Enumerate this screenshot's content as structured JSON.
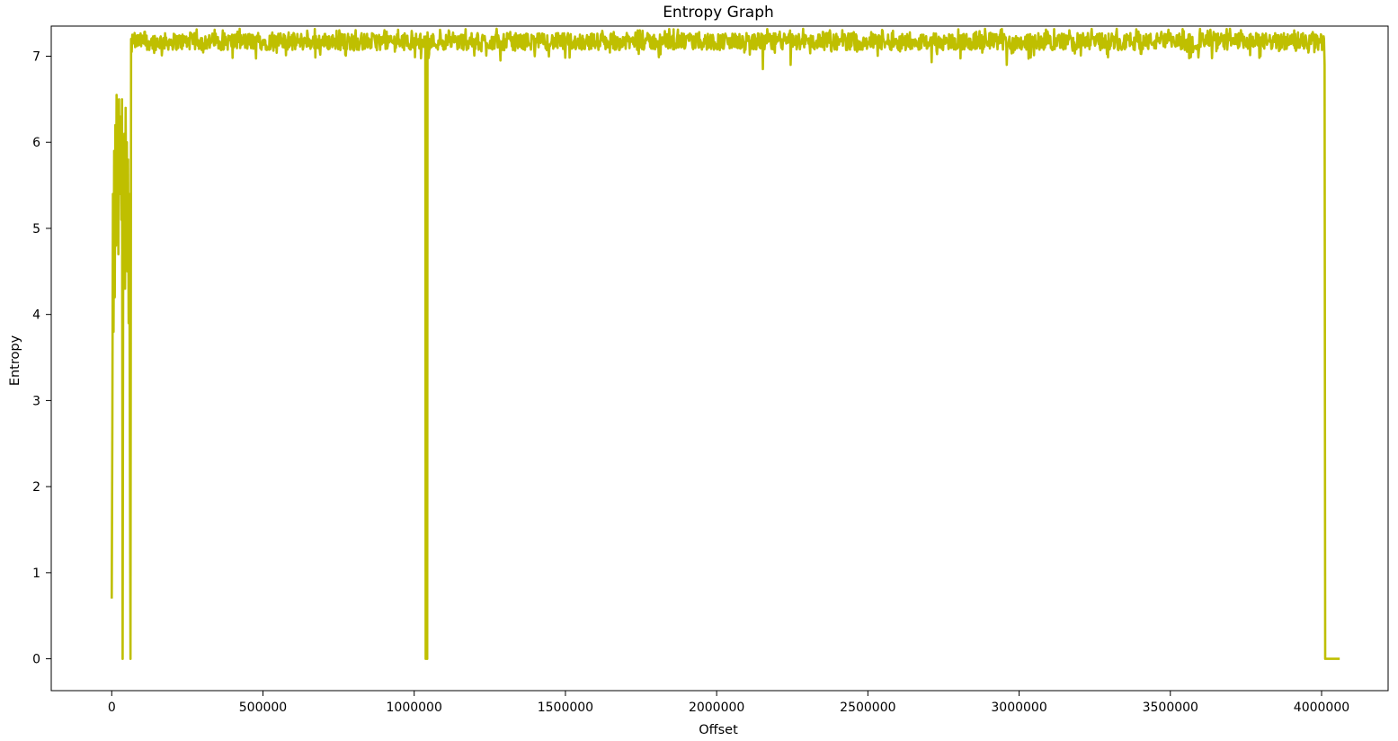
{
  "chart_data": {
    "type": "line",
    "title": "Entropy Graph",
    "xlabel": "Offset",
    "ylabel": "Entropy",
    "xlim": [
      -200000,
      4220000
    ],
    "ylim": [
      -0.37,
      7.35
    ],
    "xticks": [
      0,
      500000,
      1000000,
      1500000,
      2000000,
      2500000,
      3000000,
      3500000,
      4000000
    ],
    "xtick_labels": [
      "0",
      "500000",
      "1000000",
      "1500000",
      "2000000",
      "2500000",
      "3000000",
      "3500000",
      "4000000"
    ],
    "yticks": [
      0,
      1,
      2,
      3,
      4,
      5,
      6,
      7
    ],
    "ytick_labels": [
      "0",
      "1",
      "2",
      "3",
      "4",
      "5",
      "6",
      "7"
    ],
    "grid": false,
    "series": [
      {
        "color": "#bfbf00",
        "x": [
          0,
          2000,
          4000,
          6000,
          8000,
          10000,
          12000,
          14000,
          16000,
          18000,
          20000,
          22000,
          24000,
          26000,
          28000,
          30000,
          32000,
          34000,
          36000,
          38000,
          40000,
          42000,
          44000,
          46000,
          48000,
          50000,
          52000,
          54000,
          56000,
          58000,
          60000,
          62000,
          64000,
          66000,
          68000,
          72000,
          1035000,
          1038000,
          1040000,
          1043000,
          1046000,
          1050000,
          4008000,
          4010000,
          4012000,
          4015000,
          4018000,
          4060000
        ],
        "y": [
          0.7,
          2.7,
          5.4,
          3.8,
          5.9,
          4.2,
          6.2,
          4.8,
          6.55,
          5.2,
          6.0,
          4.7,
          6.5,
          5.4,
          5.8,
          6.3,
          5.1,
          6.5,
          0.0,
          4.9,
          5.6,
          6.1,
          4.3,
          6.4,
          5.0,
          6.0,
          4.5,
          5.8,
          3.9,
          5.4,
          2.5,
          0.0,
          7.2,
          7.05,
          7.25,
          7.15,
          7.2,
          0.0,
          7.1,
          0.0,
          7.15,
          7.2,
          7.2,
          6.9,
          0.0,
          0.0,
          0.0,
          0.0
        ],
        "noise_band": {
          "x_start": 72000,
          "x_end": 4008000,
          "mean": 7.17,
          "amplitude": 0.1,
          "min_dips": [
            {
              "x": 2153000,
              "y": 6.85
            },
            {
              "x": 2245000,
              "y": 6.9
            },
            {
              "x": 2960000,
              "y": 6.9
            },
            {
              "x": 2710000,
              "y": 6.93
            },
            {
              "x": 1285000,
              "y": 6.95
            }
          ]
        }
      }
    ]
  }
}
